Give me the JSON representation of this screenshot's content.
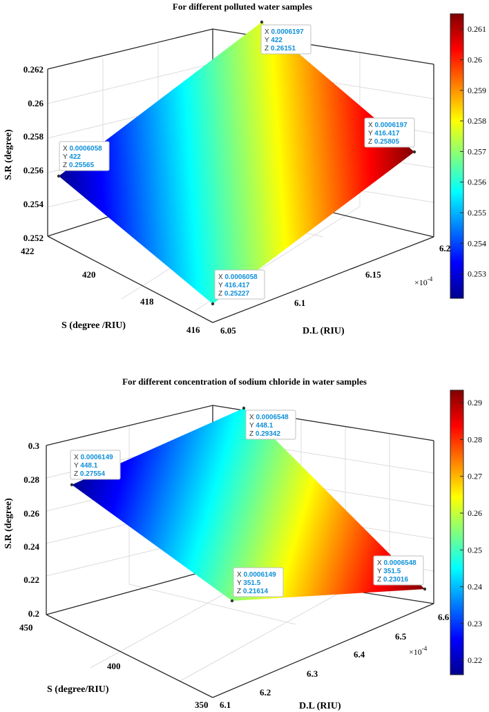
{
  "chart_data": [
    {
      "type": "surface",
      "title": "For different polluted water samples",
      "xlabel": "D.L (RIU)",
      "ylabel": "S (degree /RIU)",
      "zlabel": "S.R (degree)",
      "x_multiplier": "×10",
      "x_exponent": "-4",
      "xlim": [
        6.05,
        6.2
      ],
      "ylim": [
        416,
        422
      ],
      "zlim": [
        0.252,
        0.262
      ],
      "xticks": [
        "6.05",
        "6.1",
        "6.15",
        "6.2"
      ],
      "yticks": [
        "416",
        "418",
        "420",
        "422"
      ],
      "zticks": [
        "0.252",
        "0.254",
        "0.256",
        "0.258",
        "0.26",
        "0.262"
      ],
      "colorbar": {
        "range": [
          0.2522,
          0.2615
        ],
        "ticks": [
          "0.253",
          "0.254",
          "0.255",
          "0.256",
          "0.257",
          "0.258",
          "0.259",
          "0.26",
          "0.261"
        ]
      },
      "corners": [
        {
          "x": "0.0006058",
          "y": "416.417",
          "z": "0.25227"
        },
        {
          "x": "0.0006197",
          "y": "416.417",
          "z": "0.25805"
        },
        {
          "x": "0.0006197",
          "y": "422",
          "z": "0.26151"
        },
        {
          "x": "0.0006058",
          "y": "422",
          "z": "0.25565"
        }
      ],
      "corner_values": [
        {
          "x": 6.058,
          "y": 416.417,
          "z": 0.25227
        },
        {
          "x": 6.197,
          "y": 416.417,
          "z": 0.25805
        },
        {
          "x": 6.197,
          "y": 422,
          "z": 0.26151
        },
        {
          "x": 6.058,
          "y": 422,
          "z": 0.25565
        }
      ]
    },
    {
      "type": "surface",
      "title": "For different concentration of sodium chloride in water samples",
      "xlabel": "D.L (RIU)",
      "ylabel": "S (degree/RIU)",
      "zlabel": "S.R (degree)",
      "x_multiplier": "×10",
      "x_exponent": "-4",
      "xlim": [
        6.1,
        6.6
      ],
      "ylim": [
        350,
        450
      ],
      "zlim": [
        0.2,
        0.3
      ],
      "xticks": [
        "6.1",
        "6.2",
        "6.3",
        "6.4",
        "6.5",
        "6.6"
      ],
      "yticks": [
        "350",
        "400",
        "450"
      ],
      "zticks": [
        "0.2",
        "0.22",
        "0.24",
        "0.26",
        "0.28",
        "0.3"
      ],
      "colorbar": {
        "range": [
          0.2161,
          0.2934
        ],
        "ticks": [
          "0.22",
          "0.23",
          "0.24",
          "0.25",
          "0.26",
          "0.27",
          "0.28",
          "0.29"
        ]
      },
      "corners": [
        {
          "x": "0.0006149",
          "y": "351.5",
          "z": "0.21614"
        },
        {
          "x": "0.0006548",
          "y": "351.5",
          "z": "0.23016"
        },
        {
          "x": "0.0006548",
          "y": "448.1",
          "z": "0.29342"
        },
        {
          "x": "0.0006149",
          "y": "448.1",
          "z": "0.27554"
        }
      ],
      "corner_values": [
        {
          "x": 6.149,
          "y": 351.5,
          "z": 0.21614
        },
        {
          "x": 6.548,
          "y": 351.5,
          "z": 0.23016
        },
        {
          "x": 6.548,
          "y": 448.1,
          "z": 0.29342
        },
        {
          "x": 6.149,
          "y": 448.1,
          "z": 0.27554
        }
      ]
    }
  ]
}
